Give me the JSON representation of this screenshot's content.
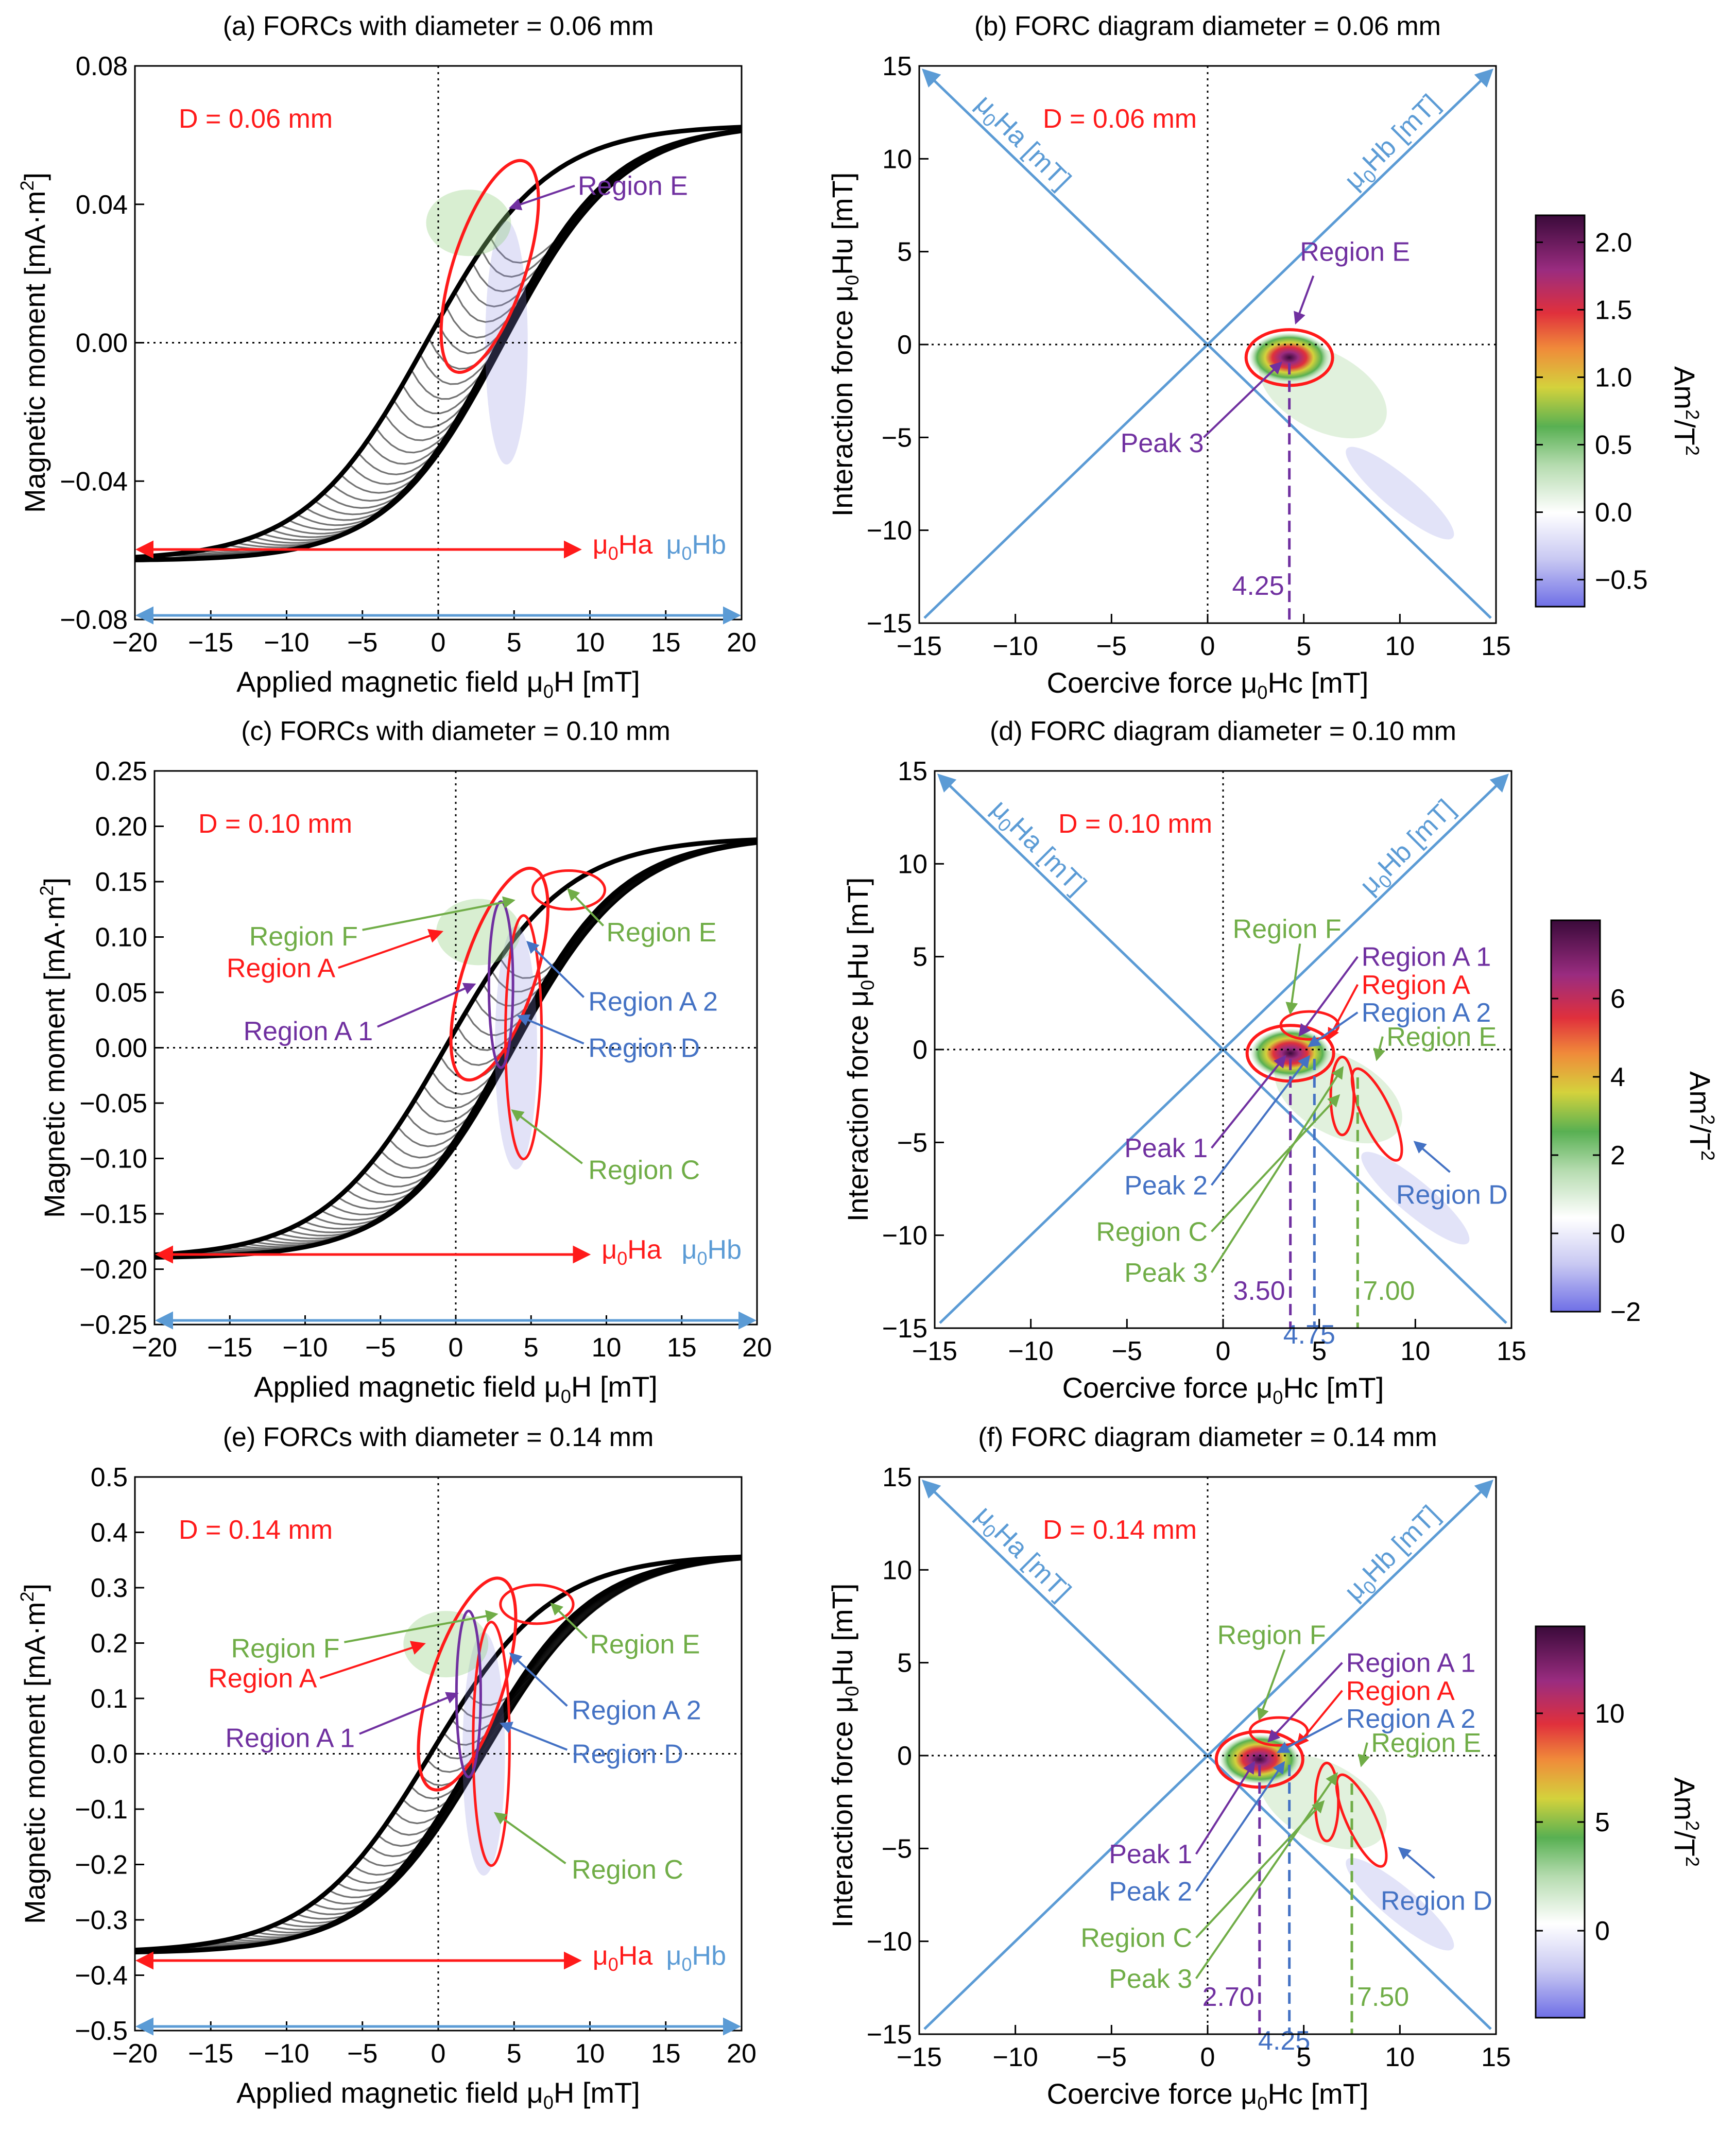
{
  "colors": {
    "red": "#ff1a1a",
    "blue": "#5b9bd5",
    "green": "#70ad47",
    "purple": "#7030a0",
    "bluetext": "#4472c4",
    "frame": "#000000"
  },
  "chart_data": [
    {
      "type": "line",
      "id": "a",
      "title": "(a) FORCs with diameter = 0.06 mm",
      "xlabel": "Applied magnetic field μ0H [mT]",
      "ylabel": "Magnetic moment [mA·m2]",
      "xlim": [
        -20,
        20
      ],
      "ylim": [
        -0.08,
        0.08
      ],
      "xticks": [
        -20,
        -15,
        -10,
        -5,
        0,
        5,
        10,
        15,
        20
      ],
      "yticks": [
        -0.08,
        -0.04,
        0.0,
        0.04,
        0.08
      ],
      "ytick_labels": [
        "−0.08",
        "−0.04",
        "0.00",
        "0.04",
        "0.08"
      ],
      "sample_label": "D = 0.06 mm",
      "arrows": [
        {
          "label": "μ0Ha",
          "x": [
            -20,
            9.5
          ]
        },
        {
          "label": "μ0Hb",
          "x": [
            -20,
            20
          ]
        }
      ],
      "regions": [
        {
          "label": "Region E",
          "color": "purple"
        }
      ],
      "major_loop": {
        "saturation_moment": 0.063,
        "coercivity_mT": 4.0
      }
    },
    {
      "type": "heatmap",
      "id": "b",
      "title": "(b) FORC diagram diameter = 0.06 mm",
      "xlabel": "Coercive force μ0Hc [mT]",
      "ylabel": "Interaction force μ0Hu [mT]",
      "xlim": [
        -15,
        15
      ],
      "ylim": [
        -15,
        15
      ],
      "ticks": [
        -15,
        -10,
        -5,
        0,
        5,
        10,
        15
      ],
      "diag_labels": [
        "μ0Ha [mT]",
        "μ0Hb [mT]"
      ],
      "sample_label": "D = 0.06 mm",
      "colorbar": {
        "label": "Am2/T2",
        "range": [
          -0.7,
          2.2
        ],
        "ticks": [
          2.0,
          1.5,
          1.0,
          0.5,
          0.0,
          -0.5
        ],
        "tick_labels": [
          "2.0",
          "1.5",
          "1.0",
          "0.5",
          "0.0",
          "−0.5"
        ]
      },
      "peaks": [
        {
          "label": "Peak 3",
          "hc": 4.25,
          "hu": -0.5
        }
      ],
      "regions": [
        {
          "label": "Region E",
          "color": "purple"
        }
      ],
      "markers": [
        {
          "value": 4.25,
          "text": "4.25"
        }
      ]
    },
    {
      "type": "line",
      "id": "c",
      "title": "(c) FORCs with diameter = 0.10 mm",
      "xlabel": "Applied magnetic field μ0H [mT]",
      "ylabel": "Magnetic moment [mA·m2]",
      "xlim": [
        -20,
        20
      ],
      "ylim": [
        -0.25,
        0.25
      ],
      "xticks": [
        -20,
        -15,
        -10,
        -5,
        0,
        5,
        10,
        15,
        20
      ],
      "yticks": [
        -0.25,
        -0.2,
        -0.15,
        -0.1,
        -0.05,
        0.0,
        0.05,
        0.1,
        0.15,
        0.2,
        0.25
      ],
      "ytick_labels": [
        "−0.25",
        "−0.20",
        "−0.15",
        "−0.10",
        "−0.05",
        "0.00",
        "0.05",
        "0.10",
        "0.15",
        "0.20",
        "0.25"
      ],
      "sample_label": "D = 0.10 mm",
      "arrows": [
        {
          "label": "μ0Ha",
          "x": [
            -20,
            9
          ]
        },
        {
          "label": "μ0Hb",
          "x": [
            -20,
            20
          ]
        }
      ],
      "regions": [
        {
          "label": "Region F",
          "color": "green"
        },
        {
          "label": "Region A",
          "color": "red"
        },
        {
          "label": "Region A 1",
          "color": "purple"
        },
        {
          "label": "Region E",
          "color": "green"
        },
        {
          "label": "Region A 2",
          "color": "bluetext"
        },
        {
          "label": "Region D",
          "color": "bluetext"
        },
        {
          "label": "Region C",
          "color": "green"
        }
      ],
      "major_loop": {
        "saturation_moment": 0.19,
        "coercivity_mT": 3.5
      }
    },
    {
      "type": "heatmap",
      "id": "d",
      "title": "(d) FORC diagram diameter = 0.10 mm",
      "xlabel": "Coercive force μ0Hc [mT]",
      "ylabel": "Interaction force μ0Hu [mT]",
      "xlim": [
        -15,
        15
      ],
      "ylim": [
        -15,
        15
      ],
      "ticks": [
        -15,
        -10,
        -5,
        0,
        5,
        10,
        15
      ],
      "diag_labels": [
        "μ0Ha [mT]",
        "μ0Hb [mT]"
      ],
      "sample_label": "D = 0.10 mm",
      "colorbar": {
        "label": "Am2/T2",
        "range": [
          -2,
          8
        ],
        "ticks": [
          6,
          4,
          2,
          0,
          -2
        ],
        "tick_labels": [
          "6",
          "4",
          "2",
          "0",
          "−2"
        ]
      },
      "peaks": [
        {
          "label": "Peak 1",
          "hc": 3.5,
          "hu": 0
        },
        {
          "label": "Peak 2",
          "hc": 4.75,
          "hu": 0
        },
        {
          "label": "Peak 3",
          "hc": 7.0,
          "hu": -1
        }
      ],
      "left_labels": [
        {
          "label": "Peak 1",
          "color": "purple"
        },
        {
          "label": "Peak 2",
          "color": "bluetext"
        },
        {
          "label": "Region C",
          "color": "green"
        },
        {
          "label": "Peak 3",
          "color": "green"
        }
      ],
      "right_labels": [
        {
          "label": "Region F",
          "color": "green"
        },
        {
          "label": "Region A 1",
          "color": "purple"
        },
        {
          "label": "Region A",
          "color": "red"
        },
        {
          "label": "Region A 2",
          "color": "bluetext"
        },
        {
          "label": "Region E",
          "color": "green"
        },
        {
          "label": "Region D",
          "color": "bluetext"
        }
      ],
      "markers": [
        {
          "value": 3.5,
          "text": "3.50"
        },
        {
          "value": 4.75,
          "text": "4.75"
        },
        {
          "value": 7.0,
          "text": "7.00"
        }
      ]
    },
    {
      "type": "line",
      "id": "e",
      "title": "(e) FORCs with diameter = 0.14 mm",
      "xlabel": "Applied magnetic field μ0H [mT]",
      "ylabel": "Magnetic moment [mA·m2]",
      "xlim": [
        -20,
        20
      ],
      "ylim": [
        -0.5,
        0.5
      ],
      "xticks": [
        -20,
        -15,
        -10,
        -5,
        0,
        5,
        10,
        15,
        20
      ],
      "yticks": [
        -0.5,
        -0.4,
        -0.3,
        -0.2,
        -0.1,
        0.0,
        0.1,
        0.2,
        0.3,
        0.4,
        0.5
      ],
      "ytick_labels": [
        "−0.5",
        "−0.4",
        "−0.3",
        "−0.2",
        "−0.1",
        "0.0",
        "0.1",
        "0.2",
        "0.3",
        "0.4",
        "0.5"
      ],
      "sample_label": "D = 0.14 mm",
      "arrows": [
        {
          "label": "μ0Ha",
          "x": [
            -20,
            9.5
          ]
        },
        {
          "label": "μ0Hb",
          "x": [
            -20,
            20
          ]
        }
      ],
      "regions": [
        {
          "label": "Region F",
          "color": "green"
        },
        {
          "label": "Region A",
          "color": "red"
        },
        {
          "label": "Region A 1",
          "color": "purple"
        },
        {
          "label": "Region E",
          "color": "green"
        },
        {
          "label": "Region A 2",
          "color": "bluetext"
        },
        {
          "label": "Region D",
          "color": "bluetext"
        },
        {
          "label": "Region C",
          "color": "green"
        }
      ],
      "major_loop": {
        "saturation_moment": 0.36,
        "coercivity_mT": 2.5
      }
    },
    {
      "type": "heatmap",
      "id": "f",
      "title": "(f) FORC diagram diameter = 0.14 mm",
      "xlabel": "Coercive force μ0Hc [mT]",
      "ylabel": "Interaction force μ0Hu [mT]",
      "xlim": [
        -15,
        15
      ],
      "ylim": [
        -15,
        15
      ],
      "ticks": [
        -15,
        -10,
        -5,
        0,
        5,
        10,
        15
      ],
      "diag_labels": [
        "μ0Ha [mT]",
        "μ0Hb [mT]"
      ],
      "sample_label": "D = 0.14 mm",
      "colorbar": {
        "label": "Am2/T2",
        "range": [
          -4,
          14
        ],
        "ticks": [
          10,
          5,
          0
        ],
        "tick_labels": [
          "10",
          "5",
          "0"
        ]
      },
      "peaks": [
        {
          "label": "Peak 1",
          "hc": 2.7,
          "hu": 0
        },
        {
          "label": "Peak 2",
          "hc": 4.25,
          "hu": 0
        },
        {
          "label": "Peak 3",
          "hc": 7.5,
          "hu": -1
        }
      ],
      "left_labels": [
        {
          "label": "Peak 1",
          "color": "purple"
        },
        {
          "label": "Peak 2",
          "color": "bluetext"
        },
        {
          "label": "Region C",
          "color": "green"
        },
        {
          "label": "Peak 3",
          "color": "green"
        }
      ],
      "right_labels": [
        {
          "label": "Region F",
          "color": "green"
        },
        {
          "label": "Region A 1",
          "color": "purple"
        },
        {
          "label": "Region A",
          "color": "red"
        },
        {
          "label": "Region A 2",
          "color": "bluetext"
        },
        {
          "label": "Region E",
          "color": "green"
        },
        {
          "label": "Region D",
          "color": "bluetext"
        }
      ],
      "markers": [
        {
          "value": 2.7,
          "text": "2.70"
        },
        {
          "value": 4.25,
          "text": "4.25"
        },
        {
          "value": 7.5,
          "text": "7.50"
        }
      ]
    }
  ]
}
